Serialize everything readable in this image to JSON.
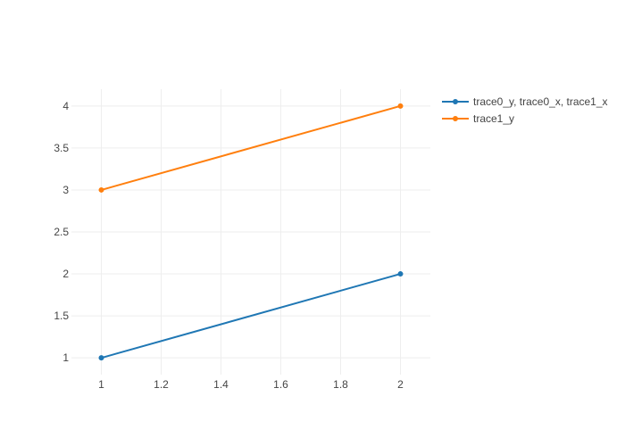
{
  "chart_data": {
    "type": "line",
    "title": "",
    "xlabel": "",
    "ylabel": "",
    "xlim": [
      0.9,
      2.1
    ],
    "ylim": [
      0.8,
      4.2
    ],
    "x_ticks": [
      1,
      1.2,
      1.4,
      1.6,
      1.8,
      2
    ],
    "x_tick_labels": [
      "1",
      "1.2",
      "1.4",
      "1.6",
      "1.8",
      "2"
    ],
    "y_ticks": [
      1,
      1.5,
      2,
      2.5,
      3,
      3.5,
      4
    ],
    "y_tick_labels": [
      "1",
      "1.5",
      "2",
      "2.5",
      "3",
      "3.5",
      "4"
    ],
    "grid": true,
    "legend_position": "top-right",
    "series": [
      {
        "name": "trace0_y, trace0_x, trace1_x",
        "color": "#1f77b4",
        "x": [
          1,
          2
        ],
        "y": [
          1,
          2
        ]
      },
      {
        "name": "trace1_y",
        "color": "#ff7f0e",
        "x": [
          1,
          2
        ],
        "y": [
          3,
          4
        ]
      }
    ]
  }
}
